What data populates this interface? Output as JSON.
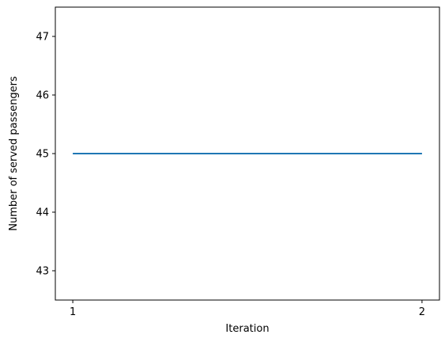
{
  "chart_data": {
    "type": "line",
    "title": "",
    "xlabel": "Iteration",
    "ylabel": "Number of served passengers",
    "x": [
      1,
      2
    ],
    "series": [
      {
        "values": [
          45,
          45
        ],
        "color": "#1f77b4"
      }
    ],
    "xlim": [
      0.95,
      2.05
    ],
    "ylim": [
      42.5,
      47.5
    ],
    "xticks": [
      1,
      2
    ],
    "yticks": [
      43,
      44,
      45,
      46,
      47
    ],
    "grid": false,
    "legend": "none"
  }
}
